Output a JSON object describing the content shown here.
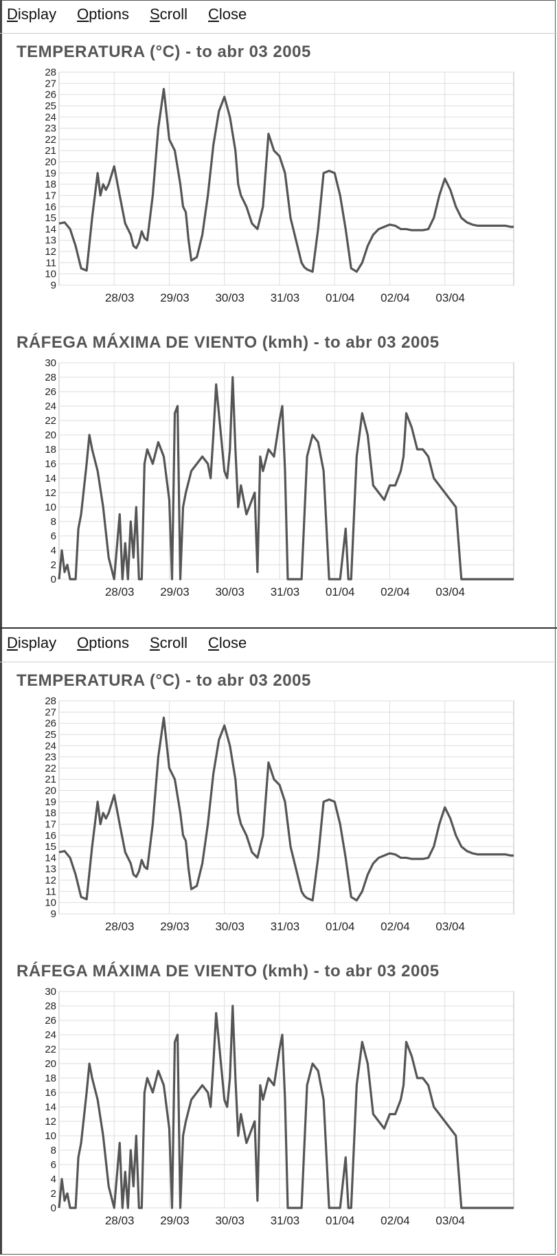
{
  "menu": {
    "items": [
      {
        "pre": "",
        "ul": "D",
        "post": "isplay"
      },
      {
        "pre": "",
        "ul": "O",
        "post": "ptions"
      },
      {
        "pre": "",
        "ul": "S",
        "post": "croll"
      },
      {
        "pre": "",
        "ul": "C",
        "post": "lose"
      }
    ]
  },
  "colors": {
    "line": "#555555",
    "grid": "#dddddd"
  },
  "chart_data": [
    {
      "type": "line",
      "title": "TEMPERATURA (°C) - to abr 03 2005",
      "xlabel": "",
      "ylabel": "",
      "categories": [
        "28/03",
        "29/03",
        "30/03",
        "31/03",
        "01/04",
        "02/04",
        "03/04"
      ],
      "ylim": [
        9,
        28
      ],
      "yticks": [
        9,
        10,
        11,
        12,
        13,
        14,
        15,
        16,
        17,
        18,
        19,
        20,
        21,
        22,
        23,
        24,
        25,
        26,
        27,
        28
      ],
      "grid": true,
      "x": [
        0,
        0.1,
        0.2,
        0.3,
        0.4,
        0.5,
        0.6,
        0.7,
        0.75,
        0.8,
        0.85,
        0.9,
        1.0,
        1.1,
        1.2,
        1.3,
        1.35,
        1.4,
        1.45,
        1.5,
        1.55,
        1.6,
        1.7,
        1.8,
        1.9,
        2.0,
        2.1,
        2.2,
        2.25,
        2.3,
        2.35,
        2.4,
        2.5,
        2.6,
        2.7,
        2.8,
        2.9,
        3.0,
        3.1,
        3.2,
        3.25,
        3.3,
        3.4,
        3.5,
        3.6,
        3.7,
        3.8,
        3.9,
        4.0,
        4.1,
        4.2,
        4.3,
        4.4,
        4.45,
        4.5,
        4.6,
        4.7,
        4.8,
        4.9,
        5.0,
        5.1,
        5.2,
        5.3,
        5.4,
        5.5,
        5.6,
        5.7,
        5.8,
        5.9,
        6.0,
        6.1,
        6.2,
        6.3,
        6.4,
        6.5,
        6.6,
        6.7,
        6.8,
        6.9,
        7.0,
        7.1,
        7.2,
        7.3,
        7.4,
        7.5,
        7.6,
        7.7,
        7.8,
        7.9,
        8.0,
        8.1,
        8.2,
        8.25
      ],
      "series": [
        {
          "values": [
            14.5,
            14.6,
            14.0,
            12.5,
            10.5,
            10.3,
            15,
            19,
            17,
            18,
            17.5,
            18,
            19.6,
            17,
            14.5,
            13.5,
            12.5,
            12.3,
            12.8,
            13.8,
            13.2,
            13,
            17,
            23,
            26.5,
            22,
            21,
            18,
            16,
            15.5,
            13,
            11.2,
            11.5,
            13.5,
            17,
            21.5,
            24.5,
            25.8,
            24,
            21,
            18,
            17,
            16,
            14.5,
            14,
            16,
            22.5,
            21,
            20.5,
            19,
            15,
            13,
            11,
            10.6,
            10.4,
            10.2,
            14,
            19,
            19.2,
            19,
            17,
            14,
            10.5,
            10.2,
            11,
            12.5,
            13.5,
            14,
            14.2,
            14.4,
            14.3,
            14,
            14,
            13.9,
            13.9,
            13.9,
            14,
            15,
            17,
            18.5,
            17.5,
            16,
            15,
            14.6,
            14.4,
            14.3,
            14.3,
            14.3,
            14.3,
            14.3,
            14.3,
            14.2,
            14.2
          ]
        }
      ]
    },
    {
      "type": "line",
      "title": "RÁFEGA MÁXIMA DE VIENTO (kmh) - to abr 03 2005",
      "xlabel": "",
      "ylabel": "",
      "categories": [
        "28/03",
        "29/03",
        "30/03",
        "31/03",
        "01/04",
        "02/04",
        "03/04"
      ],
      "ylim": [
        0,
        30
      ],
      "yticks": [
        0,
        2,
        4,
        6,
        8,
        10,
        12,
        14,
        16,
        18,
        20,
        22,
        24,
        26,
        28,
        30
      ],
      "grid": true,
      "x": [
        0,
        0.05,
        0.1,
        0.15,
        0.2,
        0.25,
        0.3,
        0.35,
        0.4,
        0.5,
        0.55,
        0.6,
        0.7,
        0.8,
        0.9,
        1.0,
        1.1,
        1.15,
        1.2,
        1.25,
        1.3,
        1.35,
        1.4,
        1.45,
        1.5,
        1.55,
        1.6,
        1.7,
        1.8,
        1.9,
        2.0,
        2.05,
        2.1,
        2.15,
        2.2,
        2.25,
        2.3,
        2.4,
        2.5,
        2.6,
        2.7,
        2.75,
        2.8,
        2.85,
        2.9,
        3.0,
        3.05,
        3.1,
        3.15,
        3.2,
        3.25,
        3.3,
        3.4,
        3.5,
        3.55,
        3.6,
        3.65,
        3.7,
        3.8,
        3.9,
        4.0,
        4.05,
        4.1,
        4.15,
        4.2,
        4.3,
        4.4,
        4.5,
        4.6,
        4.7,
        4.8,
        4.9,
        5.0,
        5.1,
        5.2,
        5.25,
        5.3,
        5.4,
        5.5,
        5.6,
        5.7,
        5.8,
        5.9,
        6.0,
        6.1,
        6.2,
        6.25,
        6.3,
        6.4,
        6.5,
        6.6,
        6.7,
        6.8,
        6.9,
        7.0,
        7.1,
        7.2,
        7.3,
        7.4,
        7.5,
        7.6,
        7.7,
        7.8,
        7.9,
        8.0,
        8.1,
        8.2,
        8.25
      ],
      "series": [
        {
          "values": [
            0,
            4,
            1,
            2,
            0,
            0,
            0,
            7,
            9,
            16,
            20,
            18,
            15,
            10,
            3,
            0,
            9,
            0,
            5,
            0,
            8,
            3,
            10,
            0,
            0,
            16,
            18,
            16,
            19,
            17,
            11,
            0,
            23,
            24,
            0,
            10,
            12,
            15,
            16,
            17,
            16,
            14,
            20,
            27,
            23,
            15,
            14,
            18,
            28,
            18,
            10,
            13,
            9,
            11,
            12,
            1,
            17,
            15,
            18,
            17,
            22,
            24,
            15,
            0,
            0,
            0,
            0,
            17,
            20,
            19,
            15,
            0,
            0,
            0,
            7,
            0,
            0,
            17,
            23,
            20,
            13,
            12,
            11,
            13,
            13,
            15,
            17,
            23,
            21,
            18,
            18,
            17,
            14,
            13,
            12,
            11,
            10,
            0,
            0,
            0,
            0,
            0,
            0,
            0,
            0,
            0,
            0,
            0
          ]
        }
      ]
    }
  ]
}
